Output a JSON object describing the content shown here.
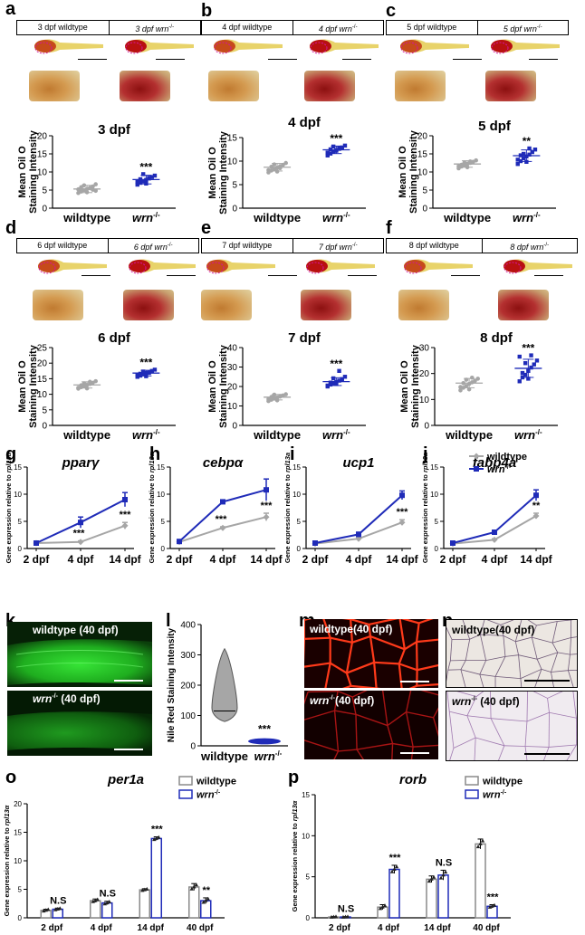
{
  "colors": {
    "wildtype": "#a6a6a6",
    "mutant": "#1f2bb8",
    "axis": "#000000"
  },
  "panel_letters": [
    "a",
    "b",
    "c",
    "d",
    "e",
    "f",
    "g",
    "h",
    "i",
    "j",
    "k",
    "l",
    "m",
    "n",
    "o",
    "p"
  ],
  "strip_panels": [
    {
      "letter": "a",
      "wt_label": "3 dpf wildtype",
      "mut_label": "3 dpf wrn",
      "sup": "-/-"
    },
    {
      "letter": "b",
      "wt_label": "4 dpf wildtype",
      "mut_label": "4 dpf wrn",
      "sup": "-/-"
    },
    {
      "letter": "c",
      "wt_label": "5 dpf wildtype",
      "mut_label": "5 dpf wrn",
      "sup": "-/-"
    },
    {
      "letter": "d",
      "wt_label": "6 dpf wildtype",
      "mut_label": "6 dpf wrn",
      "sup": "-/-"
    },
    {
      "letter": "e",
      "wt_label": "7 dpf wildtype",
      "mut_label": "7 dpf wrn",
      "sup": "-/-"
    },
    {
      "letter": "f",
      "wt_label": "8 dpf wildtype",
      "mut_label": "8 dpf wrn",
      "sup": "-/-"
    }
  ],
  "micro_panels": {
    "k_top": "wildtype (40 dpf)",
    "k_bottom": "wrn",
    "k_bottom_suffix": " (40 dpf)",
    "sup": "-/-",
    "m_top": "wildtype(40 dpf)",
    "m_bottom": "wrn",
    "m_bottom_suffix": "(40 dpf)",
    "n_top": "wildtype(40 dpf)",
    "n_bottom": "wrn",
    "n_bottom_suffix": " (40 dpf)"
  },
  "chart_data": [
    {
      "id": "a",
      "type": "scatter",
      "title": "3 dpf",
      "ylabel": [
        "Mean Oil O",
        "Staining Intensity"
      ],
      "categories": [
        "wildtype",
        "wrn"
      ],
      "category_sup": [
        "",
        "-/-"
      ],
      "ylim": [
        0,
        20
      ],
      "yticks": [
        0,
        5,
        10,
        15,
        20
      ],
      "series": [
        {
          "name": "wildtype",
          "mean": 5.3,
          "sd": 1.0,
          "values": [
            4.2,
            4.6,
            5.0,
            5.3,
            5.6,
            6.0,
            4.8,
            5.2,
            5.8,
            6.3,
            4.4,
            5.5,
            5.1,
            6.6
          ]
        },
        {
          "name": "wrn",
          "mean": 7.9,
          "sd": 1.2,
          "values": [
            6.5,
            7.0,
            7.4,
            7.8,
            8.2,
            8.6,
            9.0,
            7.2,
            8.0,
            9.4,
            6.8,
            8.4
          ]
        }
      ],
      "annotation": "***"
    },
    {
      "id": "b",
      "type": "scatter",
      "title": "4 dpf",
      "ylabel": [
        "Mean Oil O",
        "Staining Intensity"
      ],
      "categories": [
        "wildtype",
        "wrn"
      ],
      "category_sup": [
        "",
        "-/-"
      ],
      "ylim": [
        0,
        15
      ],
      "yticks": [
        0,
        5,
        10,
        15
      ],
      "series": [
        {
          "name": "wildtype",
          "mean": 8.7,
          "sd": 0.8,
          "values": [
            7.6,
            8.0,
            8.3,
            8.6,
            8.9,
            9.2,
            9.6,
            8.1,
            8.8,
            9.3,
            7.8,
            8.5
          ]
        },
        {
          "name": "wrn",
          "mean": 12.4,
          "sd": 0.8,
          "values": [
            11.2,
            11.6,
            12.0,
            12.3,
            12.6,
            12.9,
            13.3,
            11.8,
            12.5,
            13.1,
            12.2,
            12.8
          ]
        }
      ],
      "annotation": "***"
    },
    {
      "id": "c",
      "type": "scatter",
      "title": "5 dpf",
      "ylabel": [
        "Mean Oil O",
        "Staining Intensity"
      ],
      "categories": [
        "wildtype",
        "wrn"
      ],
      "category_sup": [
        "",
        "-/-"
      ],
      "ylim": [
        0,
        20
      ],
      "yticks": [
        0,
        5,
        10,
        15,
        20
      ],
      "series": [
        {
          "name": "wildtype",
          "mean": 12.2,
          "sd": 0.9,
          "values": [
            11.0,
            11.5,
            11.8,
            12.2,
            12.5,
            12.8,
            13.2,
            11.6,
            12.0,
            12.6,
            11.3,
            12.9
          ]
        },
        {
          "name": "wrn",
          "mean": 14.5,
          "sd": 1.6,
          "values": [
            12.2,
            13.0,
            13.8,
            14.3,
            14.8,
            15.5,
            16.2,
            13.4,
            14.6,
            15.0,
            12.8,
            16.5
          ]
        }
      ],
      "annotation": "**"
    },
    {
      "id": "d",
      "type": "scatter",
      "title": "6 dpf",
      "ylabel": [
        "Mean Oil O",
        "Staining Intensity"
      ],
      "categories": [
        "wildtype",
        "wrn"
      ],
      "category_sup": [
        "",
        "-/-"
      ],
      "ylim": [
        0,
        25
      ],
      "yticks": [
        0,
        5,
        10,
        15,
        20,
        25
      ],
      "series": [
        {
          "name": "wildtype",
          "mean": 13.0,
          "sd": 1.0,
          "values": [
            11.8,
            12.3,
            12.6,
            13.0,
            13.3,
            13.7,
            14.2,
            12.1,
            12.9,
            13.5,
            11.9,
            14.0
          ]
        },
        {
          "name": "wrn",
          "mean": 16.8,
          "sd": 0.9,
          "values": [
            15.6,
            16.0,
            16.4,
            16.8,
            17.1,
            17.5,
            17.9,
            16.2,
            16.6,
            17.3,
            15.8,
            16.9
          ]
        }
      ],
      "annotation": "***"
    },
    {
      "id": "e",
      "type": "scatter",
      "title": "7 dpf",
      "ylabel": [
        "Mean Oil O",
        "Staining Intensity"
      ],
      "categories": [
        "wildtype",
        "wrn"
      ],
      "category_sup": [
        "",
        "-/-"
      ],
      "ylim": [
        0,
        40
      ],
      "yticks": [
        0,
        10,
        20,
        30,
        40
      ],
      "series": [
        {
          "name": "wildtype",
          "mean": 14.5,
          "sd": 1.4,
          "values": [
            12.5,
            13.2,
            13.8,
            14.3,
            14.8,
            15.4,
            16.0,
            13.5,
            14.6,
            15.8,
            12.9,
            15.1
          ]
        },
        {
          "name": "wrn",
          "mean": 22.5,
          "sd": 2.0,
          "values": [
            20.0,
            21.0,
            21.6,
            22.3,
            23.0,
            23.8,
            25.0,
            20.5,
            22.0,
            24.2,
            21.3,
            28.0
          ]
        }
      ],
      "annotation": "***"
    },
    {
      "id": "f",
      "type": "scatter",
      "title": "8 dpf",
      "ylabel": [
        "Mean Oil O",
        "Staining Intensity"
      ],
      "categories": [
        "wildtype",
        "wrn"
      ],
      "category_sup": [
        "",
        "-/-"
      ],
      "ylim": [
        0,
        30
      ],
      "yticks": [
        0,
        10,
        20,
        30
      ],
      "series": [
        {
          "name": "wildtype",
          "mean": 16.3,
          "sd": 1.8,
          "values": [
            13.5,
            14.5,
            15.2,
            16.0,
            16.6,
            17.2,
            18.0,
            14.8,
            16.3,
            17.6,
            13.9,
            18.4
          ]
        },
        {
          "name": "wrn",
          "mean": 22.0,
          "sd": 3.5,
          "values": [
            17.0,
            18.5,
            19.5,
            21.0,
            22.3,
            23.5,
            25.0,
            26.5,
            20.2,
            24.0,
            18.0,
            27.0
          ]
        }
      ],
      "annotation": "***"
    },
    {
      "id": "g",
      "type": "line",
      "title": "pparγ",
      "ylabel": "Gene expression relative to",
      "ylabel_italic": "rpl13α",
      "categories": [
        "2 dpf",
        "4 dpf",
        "14 dpf"
      ],
      "ylim": [
        0,
        15
      ],
      "yticks": [
        0,
        5,
        10,
        15
      ],
      "series": [
        {
          "name": "wildtype",
          "values": [
            1.0,
            1.2,
            4.2
          ],
          "err": [
            0.1,
            0.2,
            0.6
          ]
        },
        {
          "name": "wrn",
          "values": [
            1.0,
            4.8,
            9.0
          ],
          "err": [
            0.1,
            1.0,
            1.3
          ]
        }
      ],
      "annotations": [
        "",
        "***",
        "***"
      ]
    },
    {
      "id": "h",
      "type": "line",
      "title": "cebpα",
      "ylabel": "Gene expression relative to",
      "ylabel_italic": "rpl13α",
      "categories": [
        "2 dpf",
        "4 dpf",
        "14 dpf"
      ],
      "ylim": [
        0,
        15
      ],
      "yticks": [
        0,
        5,
        10,
        15
      ],
      "series": [
        {
          "name": "wildtype",
          "values": [
            1.2,
            3.8,
            5.8
          ],
          "err": [
            0.1,
            0.2,
            0.7
          ]
        },
        {
          "name": "wrn",
          "values": [
            1.3,
            8.6,
            10.8
          ],
          "err": [
            0.2,
            0.3,
            2.0
          ]
        }
      ],
      "annotations": [
        "",
        "***",
        "***"
      ]
    },
    {
      "id": "i",
      "type": "line",
      "title": "ucp1",
      "ylabel": "Gene expression relative to",
      "ylabel_italic": "rpl13a",
      "categories": [
        "2 dpf",
        "4 dpf",
        "14 dpf"
      ],
      "ylim": [
        0,
        15
      ],
      "yticks": [
        0,
        5,
        10,
        15
      ],
      "series": [
        {
          "name": "wildtype",
          "values": [
            0.9,
            1.8,
            4.8
          ],
          "err": [
            0.1,
            0.2,
            0.5
          ]
        },
        {
          "name": "wrn",
          "values": [
            1.0,
            2.6,
            9.8
          ],
          "err": [
            0.1,
            0.4,
            0.8
          ]
        }
      ],
      "annotations": [
        "",
        "",
        "***"
      ]
    },
    {
      "id": "j",
      "type": "line",
      "title": "fabp4a",
      "ylabel": "Gene expression relative to",
      "ylabel_italic": "rpl13a",
      "categories": [
        "2 dpf",
        "4 dpf",
        "14 dpf"
      ],
      "ylim": [
        0,
        15
      ],
      "yticks": [
        0,
        5,
        10,
        15
      ],
      "legend": "top-right",
      "series": [
        {
          "name": "wildtype",
          "values": [
            0.9,
            1.6,
            6.0
          ],
          "err": [
            0.1,
            0.2,
            0.5
          ]
        },
        {
          "name": "wrn",
          "values": [
            1.0,
            3.0,
            9.8
          ],
          "err": [
            0.1,
            0.3,
            1.0
          ]
        }
      ],
      "annotations": [
        "",
        "",
        "**"
      ]
    },
    {
      "id": "l",
      "type": "violin",
      "ylabel": "Nile Red Staining Intensity",
      "categories": [
        "wildtype",
        "wrn"
      ],
      "category_sup": [
        "",
        "-/-"
      ],
      "ylim": [
        0,
        400
      ],
      "yticks": [
        0,
        100,
        200,
        300,
        400
      ],
      "series": [
        {
          "name": "wildtype",
          "min": 80,
          "median": 115,
          "max": 320
        },
        {
          "name": "wrn",
          "min": 5,
          "median": 15,
          "max": 25
        }
      ],
      "annotation": "***"
    },
    {
      "id": "o",
      "type": "bar",
      "title": "per1a",
      "ylabel": "Gene expression relative to",
      "ylabel_italic": "rpl13α",
      "categories": [
        "2 dpf",
        "4 dpf",
        "14 dpf",
        "40 dpf"
      ],
      "ylim": [
        0,
        20
      ],
      "yticks": [
        0,
        5,
        10,
        15,
        20
      ],
      "legend": "top-right",
      "series": [
        {
          "name": "wildtype",
          "values": [
            1.3,
            3.0,
            4.9,
            5.4
          ],
          "err": [
            0.2,
            0.3,
            0.2,
            0.6
          ]
        },
        {
          "name": "wrn",
          "values": [
            1.5,
            2.6,
            13.9,
            3.0
          ],
          "err": [
            0.2,
            0.3,
            0.3,
            0.5
          ]
        }
      ],
      "annotations": [
        "N.S",
        "N.S",
        "***",
        "**"
      ]
    },
    {
      "id": "p",
      "type": "bar",
      "title": "rorb",
      "ylabel": "Gene expression relative to",
      "ylabel_italic": "rpl13α",
      "categories": [
        "2 dpf",
        "4 dpf",
        "14 dpf",
        "40 dpf"
      ],
      "ylim": [
        0,
        15
      ],
      "yticks": [
        0,
        5,
        10,
        15
      ],
      "legend": "top-right",
      "series": [
        {
          "name": "wildtype",
          "values": [
            0.1,
            1.3,
            4.7,
            9.0
          ],
          "err": [
            0.05,
            0.3,
            0.4,
            0.6
          ]
        },
        {
          "name": "wrn",
          "values": [
            0.1,
            5.9,
            5.2,
            1.4
          ],
          "err": [
            0.05,
            0.5,
            0.6,
            0.2
          ]
        }
      ],
      "annotations": [
        "N.S",
        "***",
        "N.S",
        "***"
      ]
    }
  ]
}
